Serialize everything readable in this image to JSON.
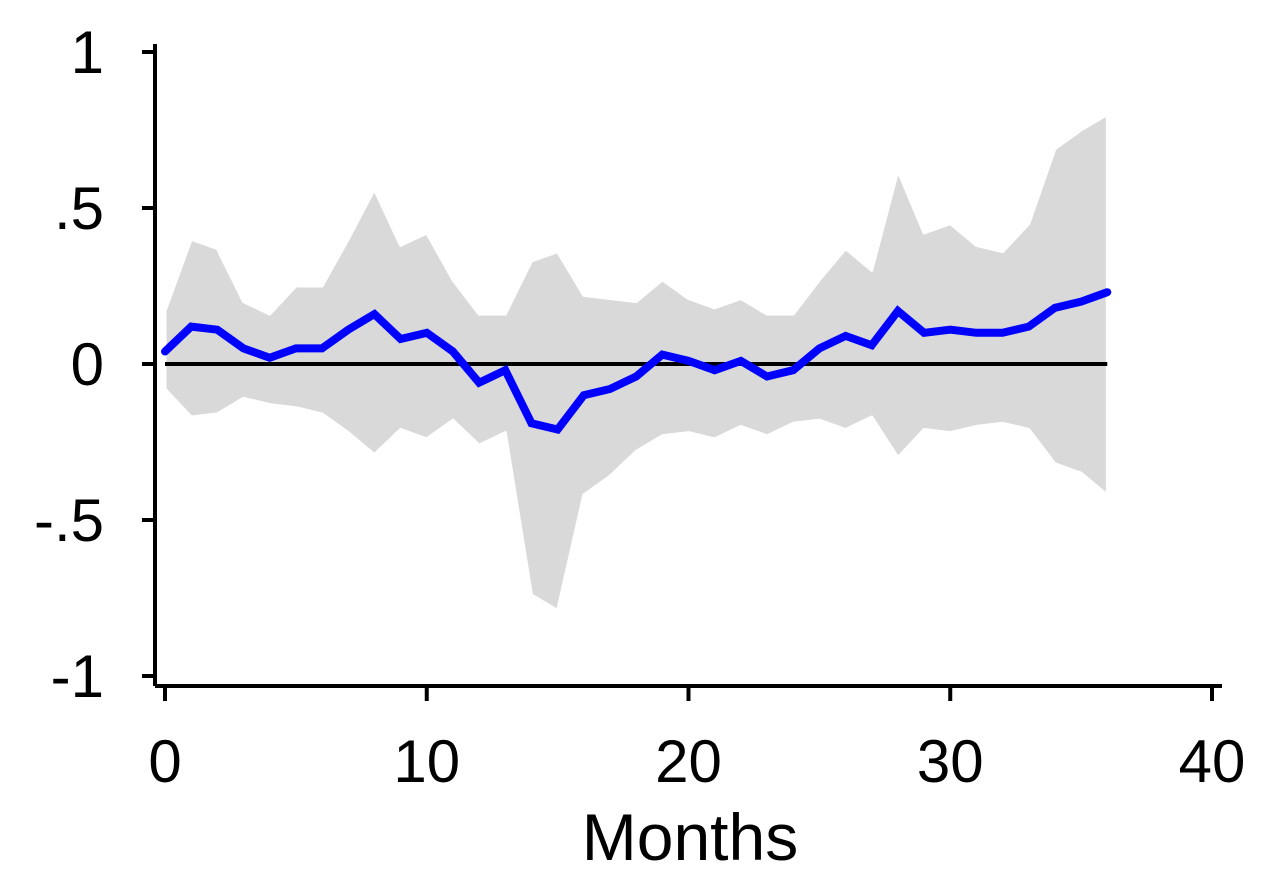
{
  "chart_data": {
    "type": "line",
    "xlabel": "Months",
    "ylabel": "",
    "xlim": [
      0,
      40
    ],
    "ylim": [
      -1,
      1
    ],
    "x_ticks": [
      {
        "value": 0,
        "label": "0"
      },
      {
        "value": 10,
        "label": "10"
      },
      {
        "value": 20,
        "label": "20"
      },
      {
        "value": 30,
        "label": "30"
      },
      {
        "value": 40,
        "label": "40"
      }
    ],
    "y_ticks": [
      {
        "value": 1,
        "label": "1"
      },
      {
        "value": 0.5,
        "label": ".5"
      },
      {
        "value": 0,
        "label": "0"
      },
      {
        "value": -0.5,
        "label": "-.5"
      },
      {
        "value": -1,
        "label": "-1"
      }
    ],
    "reference_line": {
      "y": 0,
      "x_range": [
        0,
        36
      ],
      "color": "#000000"
    },
    "x": [
      0,
      1,
      2,
      3,
      4,
      5,
      6,
      7,
      8,
      9,
      10,
      11,
      12,
      13,
      14,
      15,
      16,
      17,
      18,
      19,
      20,
      21,
      22,
      23,
      24,
      25,
      26,
      27,
      28,
      29,
      30,
      31,
      32,
      33,
      34,
      35,
      36
    ],
    "series": [
      {
        "values": [
          0.04,
          0.12,
          0.11,
          0.05,
          0.02,
          0.05,
          0.05,
          0.11,
          0.16,
          0.08,
          0.1,
          0.04,
          -0.06,
          -0.02,
          -0.19,
          -0.21,
          -0.1,
          -0.08,
          -0.04,
          0.03,
          0.01,
          -0.02,
          0.01,
          -0.04,
          -0.02,
          0.05,
          0.09,
          0.06,
          0.17,
          0.1,
          0.11,
          0.1,
          0.1,
          0.12,
          0.18,
          0.2,
          0.23
        ],
        "color": "#0000ff"
      }
    ],
    "confidence_band": {
      "lower": [
        -0.08,
        -0.17,
        -0.16,
        -0.11,
        -0.13,
        -0.14,
        -0.16,
        -0.22,
        -0.29,
        -0.21,
        -0.24,
        -0.18,
        -0.26,
        -0.22,
        -0.74,
        -0.79,
        -0.42,
        -0.36,
        -0.28,
        -0.23,
        -0.22,
        -0.24,
        -0.2,
        -0.23,
        -0.19,
        -0.18,
        -0.21,
        -0.17,
        -0.3,
        -0.21,
        -0.22,
        -0.2,
        -0.19,
        -0.21,
        -0.32,
        -0.35,
        -0.42
      ],
      "upper": [
        0.17,
        0.4,
        0.37,
        0.2,
        0.16,
        0.25,
        0.25,
        0.4,
        0.56,
        0.38,
        0.42,
        0.27,
        0.16,
        0.16,
        0.33,
        0.36,
        0.22,
        0.21,
        0.2,
        0.27,
        0.21,
        0.18,
        0.21,
        0.16,
        0.16,
        0.27,
        0.37,
        0.3,
        0.62,
        0.42,
        0.45,
        0.38,
        0.36,
        0.45,
        0.69,
        0.75,
        0.8
      ],
      "color": "#d9d9d9"
    }
  }
}
